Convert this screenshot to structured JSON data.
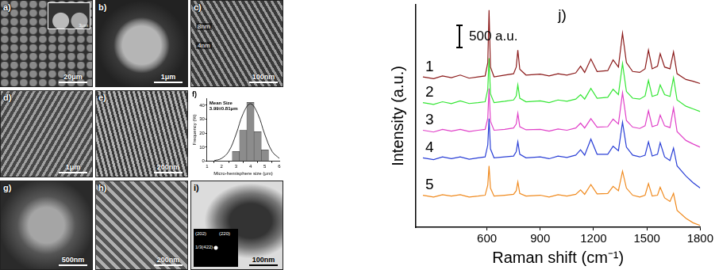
{
  "panels": [
    {
      "label": "a)",
      "scale_bar": "20μm",
      "inset_scale_bar": "3μm"
    },
    {
      "label": "b)",
      "scale_bar": "1μm"
    },
    {
      "label": "c)",
      "scale_bar": "100nm",
      "annotations": [
        "8nm",
        "4nm"
      ]
    },
    {
      "label": "d)",
      "scale_bar": "1μm"
    },
    {
      "label": "e)",
      "scale_bar": "200nm"
    },
    {
      "label": "g)",
      "scale_bar": "500nm"
    },
    {
      "label": "h)",
      "scale_bar": "200nm"
    },
    {
      "label": "i)",
      "scale_bar": "100nm",
      "diffraction_labels": [
        "(202)",
        "(220)",
        "1/3(422)"
      ]
    }
  ],
  "chart_data": [
    {
      "type": "histogram",
      "title": "f)",
      "x_label": "Micro-hemisphere size (μm)",
      "y_label": "Frequency (%)",
      "bins": [
        2.75,
        3.25,
        3.75,
        4.25,
        4.75,
        5.25
      ],
      "values": [
        7,
        22,
        42,
        21,
        8
      ],
      "color": "#8c8c8c",
      "annotations": [
        "Mean Size",
        "3.99±0.81μm"
      ],
      "fit": {
        "x": [
          1.5,
          2,
          2.5,
          3,
          3.5,
          4,
          4.5,
          5,
          5.5,
          6
        ],
        "values": [
          0.4,
          2,
          7,
          19,
          34,
          41,
          34,
          19,
          7,
          2
        ],
        "color": "#000000"
      },
      "xlim": [
        1,
        6
      ],
      "xticks": [
        1,
        2,
        3,
        4,
        5,
        6
      ],
      "ylim": [
        0,
        45
      ],
      "yticks": [
        0,
        10,
        20,
        30,
        40
      ],
      "grid": false
    },
    {
      "type": "line",
      "title": "j)",
      "x_label": "Raman shift (cm⁻¹)",
      "y_label": "Intensity (a.u.)",
      "x": [
        240,
        300,
        350,
        400,
        450,
        500,
        550,
        590,
        605,
        612,
        620,
        640,
        700,
        750,
        765,
        774,
        785,
        820,
        900,
        950,
        1000,
        1050,
        1100,
        1127,
        1150,
        1185,
        1220,
        1280,
        1310,
        1340,
        1363,
        1385,
        1420,
        1460,
        1490,
        1509,
        1530,
        1560,
        1575,
        1600,
        1630,
        1650,
        1670,
        1720,
        1760,
        1800
      ],
      "series": [
        {
          "name": "1",
          "color": "#8b1a1a",
          "values": [
            3380,
            3340,
            3400,
            3360,
            3420,
            3350,
            3380,
            3400,
            3700,
            4880,
            3600,
            3380,
            3420,
            3450,
            3600,
            3980,
            3550,
            3420,
            3440,
            3400,
            3450,
            3420,
            3470,
            3620,
            3480,
            3780,
            3500,
            3520,
            3760,
            3600,
            4360,
            3700,
            3500,
            3480,
            3560,
            3980,
            3560,
            3620,
            3900,
            3600,
            3560,
            3940,
            3450,
            3320,
            3280,
            3230
          ]
        },
        {
          "name": "2",
          "color": "#33e633",
          "values": [
            2800,
            2760,
            2820,
            2780,
            2840,
            2780,
            2800,
            2820,
            3100,
            3800,
            3000,
            2800,
            2830,
            2860,
            2950,
            3200,
            2900,
            2820,
            2840,
            2800,
            2860,
            2830,
            2880,
            2980,
            2880,
            3120,
            2900,
            2920,
            3100,
            2980,
            3680,
            3050,
            2900,
            2880,
            2950,
            3300,
            2940,
            2980,
            3200,
            2980,
            2940,
            3360,
            2860,
            2720,
            2660,
            2600
          ]
        },
        {
          "name": "3",
          "color": "#e040c8",
          "values": [
            2180,
            2140,
            2200,
            2160,
            2200,
            2150,
            2180,
            2200,
            2450,
            3120,
            2380,
            2180,
            2200,
            2230,
            2320,
            2560,
            2260,
            2190,
            2200,
            2160,
            2210,
            2180,
            2230,
            2340,
            2230,
            2440,
            2250,
            2260,
            2430,
            2320,
            3020,
            2400,
            2250,
            2220,
            2280,
            2620,
            2260,
            2300,
            2520,
            2280,
            2240,
            2680,
            2150,
            1950,
            1870,
            1800
          ]
        },
        {
          "name": "4",
          "color": "#2a3fd6",
          "values": [
            1560,
            1520,
            1580,
            1540,
            1580,
            1530,
            1560,
            1580,
            1850,
            2440,
            1760,
            1560,
            1580,
            1600,
            1700,
            1920,
            1640,
            1560,
            1580,
            1540,
            1600,
            1570,
            1620,
            1740,
            1620,
            1980,
            1640,
            1640,
            1820,
            1720,
            2360,
            1800,
            1620,
            1580,
            1620,
            1920,
            1600,
            1640,
            1900,
            1580,
            1500,
            1780,
            1380,
            1150,
            1000,
            880
          ]
        },
        {
          "name": "5",
          "color": "#f08a1e",
          "values": [
            720,
            680,
            730,
            700,
            730,
            680,
            700,
            720,
            950,
            1380,
            880,
            700,
            720,
            740,
            820,
            1020,
            760,
            700,
            720,
            680,
            730,
            700,
            740,
            840,
            740,
            960,
            750,
            760,
            920,
            820,
            1260,
            880,
            720,
            680,
            720,
            980,
            700,
            720,
            900,
            660,
            580,
            760,
            380,
            200,
            100,
            40
          ]
        }
      ],
      "xlim": [
        200,
        1800
      ],
      "xticks": [
        600,
        900,
        1200,
        1500,
        1800
      ],
      "ylim": [
        0,
        5000
      ],
      "tick_labels": "x",
      "grid": false,
      "scale_bar": {
        "value": 500,
        "label": "500 a.u."
      }
    }
  ]
}
